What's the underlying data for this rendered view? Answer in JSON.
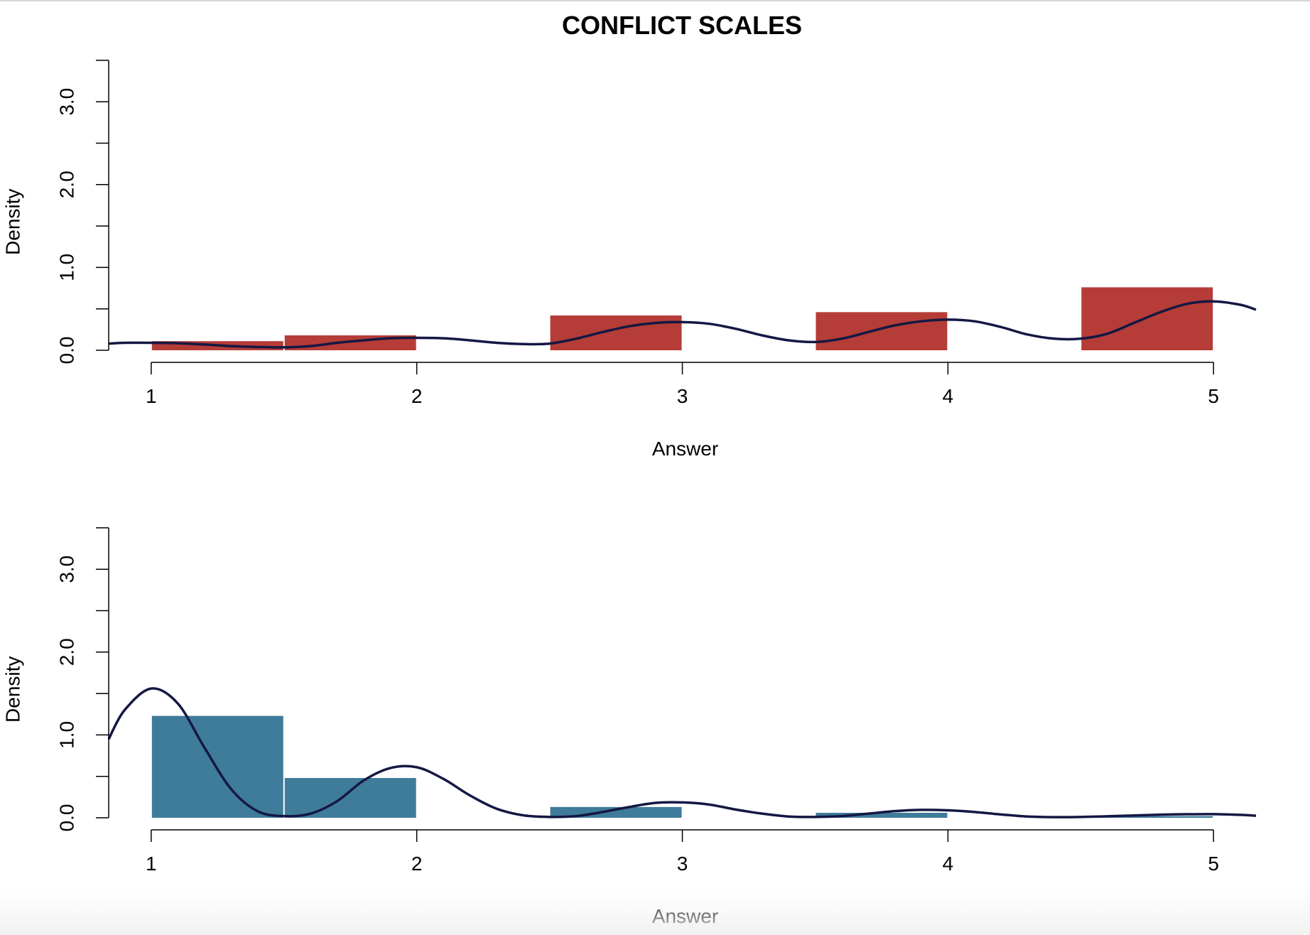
{
  "title": "CONFLICT SCALES",
  "colors": {
    "panel1_bar": "#b53c37",
    "panel2_bar": "#3f7b9a",
    "density_line": "#141843"
  },
  "chart_data": [
    {
      "type": "bar",
      "subtype": "histogram-with-density",
      "xlabel": "Answer",
      "ylabel": "Density",
      "xlim": [
        0.84,
        5.16
      ],
      "ylim": [
        0,
        3.5
      ],
      "x_ticks": [
        "1",
        "2",
        "3",
        "4",
        "5"
      ],
      "y_ticks": [
        "0.0",
        "1.0",
        "2.0",
        "3.0"
      ],
      "bins": [
        {
          "x0": 1.0,
          "x1": 1.5,
          "value": 0.11
        },
        {
          "x0": 1.5,
          "x1": 2.0,
          "value": 0.18
        },
        {
          "x0": 2.5,
          "x1": 3.0,
          "value": 0.42
        },
        {
          "x0": 3.5,
          "x1": 4.0,
          "value": 0.46
        },
        {
          "x0": 4.5,
          "x1": 5.0,
          "value": 0.76
        }
      ],
      "density": {
        "x": [
          0.84,
          0.9,
          1.0,
          1.1,
          1.2,
          1.3,
          1.4,
          1.5,
          1.6,
          1.7,
          1.8,
          1.9,
          2.0,
          2.1,
          2.2,
          2.3,
          2.4,
          2.5,
          2.6,
          2.7,
          2.8,
          2.9,
          3.0,
          3.1,
          3.2,
          3.3,
          3.4,
          3.5,
          3.6,
          3.7,
          3.8,
          3.9,
          4.0,
          4.1,
          4.2,
          4.3,
          4.4,
          4.5,
          4.6,
          4.7,
          4.8,
          4.9,
          5.0,
          5.1,
          5.16
        ],
        "y": [
          0.08,
          0.09,
          0.09,
          0.085,
          0.07,
          0.05,
          0.04,
          0.035,
          0.05,
          0.09,
          0.12,
          0.145,
          0.15,
          0.145,
          0.12,
          0.09,
          0.075,
          0.08,
          0.14,
          0.22,
          0.29,
          0.33,
          0.34,
          0.32,
          0.26,
          0.18,
          0.12,
          0.1,
          0.14,
          0.22,
          0.3,
          0.35,
          0.37,
          0.35,
          0.28,
          0.19,
          0.14,
          0.14,
          0.2,
          0.33,
          0.46,
          0.56,
          0.59,
          0.55,
          0.49
        ]
      }
    },
    {
      "type": "bar",
      "subtype": "histogram-with-density",
      "xlabel": "Answer",
      "ylabel": "Density",
      "xlim": [
        0.84,
        5.16
      ],
      "ylim": [
        0,
        3.5
      ],
      "x_ticks": [
        "1",
        "2",
        "3",
        "4",
        "5"
      ],
      "y_ticks": [
        "0.0",
        "1.0",
        "2.0",
        "3.0"
      ],
      "bins": [
        {
          "x0": 1.0,
          "x1": 1.5,
          "value": 1.23
        },
        {
          "x0": 1.5,
          "x1": 2.0,
          "value": 0.48
        },
        {
          "x0": 2.5,
          "x1": 3.0,
          "value": 0.13
        },
        {
          "x0": 3.5,
          "x1": 4.0,
          "value": 0.06
        },
        {
          "x0": 4.5,
          "x1": 5.0,
          "value": 0.02
        }
      ],
      "density": {
        "x": [
          0.84,
          0.9,
          1.0,
          1.1,
          1.2,
          1.3,
          1.4,
          1.5,
          1.6,
          1.7,
          1.8,
          1.9,
          2.0,
          2.1,
          2.2,
          2.3,
          2.4,
          2.5,
          2.6,
          2.7,
          2.8,
          2.9,
          3.0,
          3.1,
          3.2,
          3.3,
          3.4,
          3.5,
          3.6,
          3.7,
          3.8,
          3.9,
          4.0,
          4.1,
          4.2,
          4.3,
          4.4,
          4.5,
          4.6,
          4.7,
          4.8,
          4.9,
          5.0,
          5.1,
          5.16
        ],
        "y": [
          0.95,
          1.3,
          1.56,
          1.38,
          0.85,
          0.35,
          0.08,
          0.02,
          0.05,
          0.2,
          0.45,
          0.6,
          0.61,
          0.47,
          0.27,
          0.11,
          0.03,
          0.01,
          0.02,
          0.07,
          0.13,
          0.18,
          0.185,
          0.16,
          0.1,
          0.05,
          0.015,
          0.01,
          0.02,
          0.05,
          0.08,
          0.095,
          0.09,
          0.07,
          0.04,
          0.015,
          0.008,
          0.01,
          0.018,
          0.028,
          0.038,
          0.043,
          0.044,
          0.035,
          0.025
        ]
      }
    }
  ]
}
